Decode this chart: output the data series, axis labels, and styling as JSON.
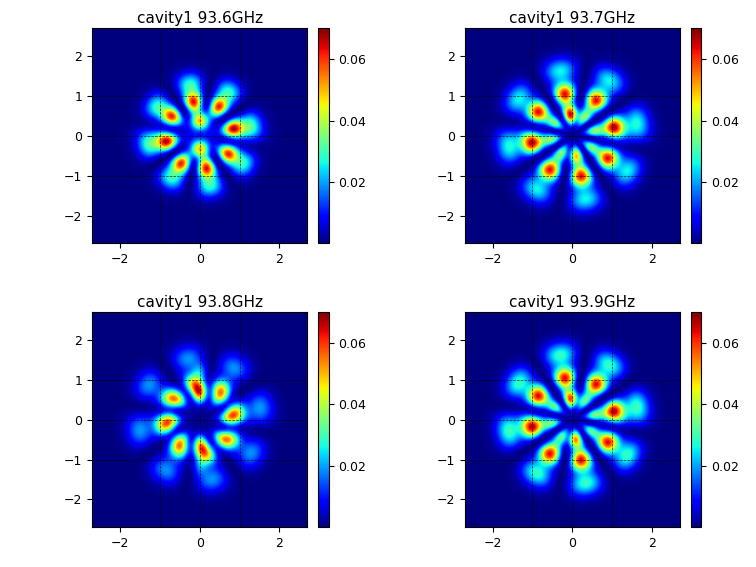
{
  "titles": [
    "cavity1 93.6GHz",
    "cavity1 93.7GHz",
    "cavity1 93.8GHz",
    "cavity1 93.9GHz"
  ],
  "xlim": [
    -2.7,
    2.7
  ],
  "ylim": [
    -2.7,
    2.7
  ],
  "xticks": [
    -2,
    0,
    2
  ],
  "yticks": [
    -2,
    -1,
    0,
    1,
    2
  ],
  "vmin": 0,
  "vmax": 0.07,
  "colorbar_ticks": [
    0.02,
    0.04,
    0.06
  ],
  "cmap": "jet",
  "figsize": [
    7.56,
    5.67
  ],
  "dpi": 100
}
